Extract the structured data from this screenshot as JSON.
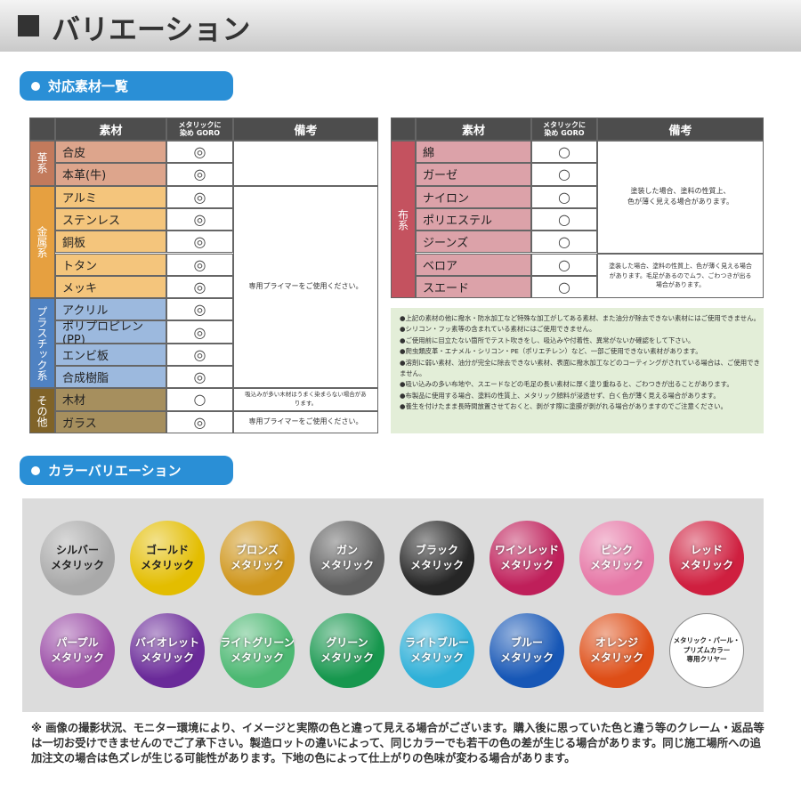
{
  "header": {
    "title": "バリエーション"
  },
  "materials": {
    "title": "対応素材一覧",
    "left_table": {
      "columns": [
        "素材",
        "メタリックに\n染め GORO",
        "備考"
      ],
      "groups": [
        {
          "label": "革系",
          "label_color": "#c27a5c",
          "cell_color": "#dda58c",
          "rows": [
            {
              "material": "合皮",
              "mark": "◎"
            },
            {
              "material": "本革(牛)",
              "mark": "◎"
            }
          ]
        },
        {
          "label": "金属系",
          "label_color": "#e6a040",
          "cell_color": "#f4c57c",
          "rows": [
            {
              "material": "アルミ",
              "mark": "◎"
            },
            {
              "material": "ステンレス",
              "mark": "◎"
            },
            {
              "material": "銅板",
              "mark": "◎"
            },
            {
              "material": "トタン",
              "mark": "◎"
            },
            {
              "material": "メッキ",
              "mark": "◎"
            }
          ]
        },
        {
          "label": "プラスチック系",
          "label_color": "#4f82c2",
          "cell_color": "#9cb9de",
          "rows": [
            {
              "material": "アクリル",
              "mark": "◎"
            },
            {
              "material": "ポリプロピレン(PP)",
              "mark": "◎"
            },
            {
              "material": "エンビ板",
              "mark": "◎"
            },
            {
              "material": "合成樹脂",
              "mark": "◎"
            }
          ]
        },
        {
          "label": "その他",
          "label_color": "#806328",
          "cell_color": "#a68f5e",
          "rows": [
            {
              "material": "木材",
              "mark": "○"
            },
            {
              "material": "ガラス",
              "mark": "◎"
            }
          ]
        }
      ],
      "remarks": [
        "専用プライマーをご使用ください。",
        "吸込みが多い木材はうまく染まらない場合があります。",
        "専用プライマーをご使用ください。"
      ]
    },
    "right_table": {
      "columns": [
        "素材",
        "メタリックに\n染め GORO",
        "備考"
      ],
      "groups": [
        {
          "label": "布系",
          "label_color": "#c4525f",
          "cell_color": "#dca2a9",
          "rows": [
            {
              "material": "綿",
              "mark": "○"
            },
            {
              "material": "ガーゼ",
              "mark": "○"
            },
            {
              "material": "ナイロン",
              "mark": "○"
            },
            {
              "material": "ポリエステル",
              "mark": "○"
            },
            {
              "material": "ジーンズ",
              "mark": "○"
            },
            {
              "material": "ベロア",
              "mark": "○"
            },
            {
              "material": "スエード",
              "mark": "○"
            }
          ]
        }
      ],
      "remarks": [
        "塗装した場合、塗料の性質上、\n色が薄く見える場合があります。",
        "塗装した場合、塗料の性質上、色が薄く見える場合があります。毛足があるのでムラ、ごわつきが出る場合があります。"
      ]
    },
    "notes": [
      "●上記の素材の他に撥水・防水加工など特殊な加工がしてある素材、また油分が除去できない素材にはご使用できません。",
      "●シリコン・フッ素等の含まれている素材にはご使用できません。",
      "●ご使用前に目立たない箇所でテスト吹きをし、吸込みや付着性、異常がないか確認をして下さい。",
      "●爬虫類皮革・エナメル・シリコン・PE（ポリエチレン）など、一部ご使用できない素材があります。",
      "●溶剤に弱い素材、油分が完全に除去できない素材、表面に撥水加工などのコーティングがされている場合は、ご使用できません。",
      "●吸い込みの多い布地や、スエードなどの毛足の長い素材に厚く塗り重ねると、ごわつきが出ることがあります。",
      "●布製品に使用する場合、塗料の性質上、メタリック顔料が浸透せず、白く色が薄く見える場合があります。",
      "●養生を付けたまま長時間放置させておくと、剥がす際に塗膜が剥がれる場合がありますのでご注意ください。"
    ]
  },
  "colors": {
    "title": "カラーバリエーション",
    "items": [
      {
        "label": "シルバー\nメタリック",
        "color": "#a9a9a9",
        "text_color": "#222222"
      },
      {
        "label": "ゴールド\nメタリック",
        "color": "#e3bd00",
        "text_color": "#222222"
      },
      {
        "label": "ブロンズ\nメタリック",
        "color": "#cf961c",
        "text_color": "#ffffff"
      },
      {
        "label": "ガン\nメタリック",
        "color": "#5e5e5e",
        "text_color": "#ffffff"
      },
      {
        "label": "ブラック\nメタリック",
        "color": "#262626",
        "text_color": "#ffffff"
      },
      {
        "label": "ワインレッド\nメタリック",
        "color": "#bf1f5a",
        "text_color": "#ffffff"
      },
      {
        "label": "ピンク\nメタリック",
        "color": "#e677a6",
        "text_color": "#ffffff"
      },
      {
        "label": "レッド\nメタリック",
        "color": "#cf1f3f",
        "text_color": "#ffffff"
      },
      {
        "label": "パープル\nメタリック",
        "color": "#9a4ba6",
        "text_color": "#ffffff"
      },
      {
        "label": "バイオレット\nメタリック",
        "color": "#6a2a99",
        "text_color": "#ffffff"
      },
      {
        "label": "ライトグリーン\nメタリック",
        "color": "#4cb872",
        "text_color": "#ffffff"
      },
      {
        "label": "グリーン\nメタリック",
        "color": "#17974e",
        "text_color": "#ffffff"
      },
      {
        "label": "ライトブルー\nメタリック",
        "color": "#2fb0d8",
        "text_color": "#ffffff"
      },
      {
        "label": "ブルー\nメタリック",
        "color": "#1757b6",
        "text_color": "#ffffff"
      },
      {
        "label": "オレンジ\nメタリック",
        "color": "#de4e17",
        "text_color": "#ffffff"
      },
      {
        "label": "メタリック・パール・\nプリズムカラー\n専用クリヤー",
        "color": "#ffffff",
        "text_color": "#222222"
      }
    ]
  },
  "footer": {
    "note": "※ 画像の撮影状況、モニター環境により、イメージと実際の色と違って見える場合がございます。購入後に思っていた色と違う等のクレーム・返品等は一切お受けできませんのでご了承下さい。製造ロットの違いによって、同じカラーでも若干の色の差が生じる場合があります。同じ施工場所への追加注文の場合は色ズレが生じる可能性があります。下地の色によって仕上がりの色味が変わる場合があります。"
  }
}
